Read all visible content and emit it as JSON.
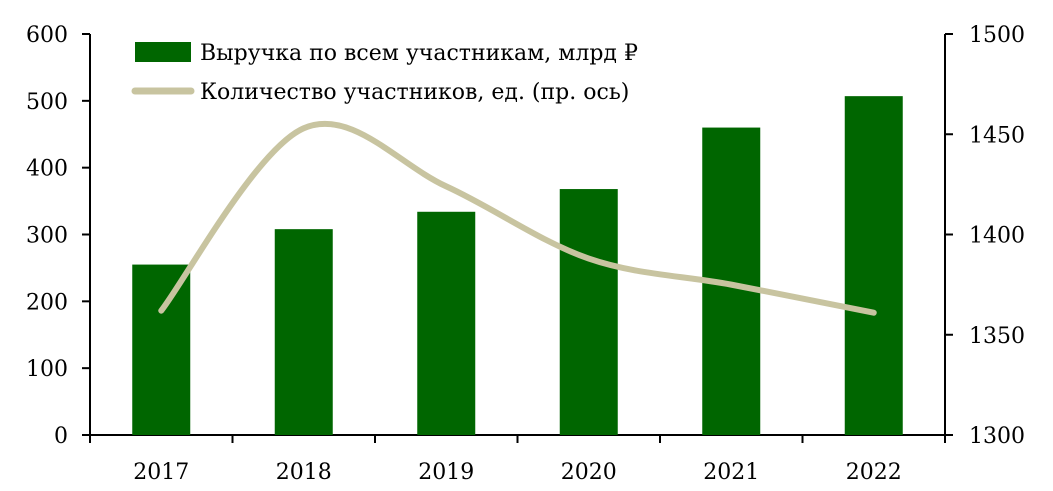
{
  "chart_data": {
    "type": "bar",
    "categories": [
      "2017",
      "2018",
      "2019",
      "2020",
      "2021",
      "2022"
    ],
    "series": [
      {
        "name": "Выручка по всем участникам, млрд ₽",
        "type": "bar",
        "axis": "left",
        "color": "#006600",
        "values": [
          255,
          308,
          334,
          368,
          460,
          507
        ]
      },
      {
        "name": "Количество участников, ед. (пр. ось)",
        "type": "line",
        "smooth": true,
        "axis": "right",
        "color": "#c8c4a0",
        "values": [
          1362,
          1453,
          1424,
          1388,
          1375,
          1361
        ]
      }
    ],
    "y_left": {
      "min": 0,
      "max": 600,
      "ticks": [
        "0",
        "100",
        "200",
        "300",
        "400",
        "500",
        "600"
      ]
    },
    "y_right": {
      "min": 1300,
      "max": 1500,
      "ticks": [
        "1300",
        "1350",
        "1400",
        "1450",
        "1500"
      ]
    },
    "grid": false,
    "legend_position": "top-left"
  }
}
